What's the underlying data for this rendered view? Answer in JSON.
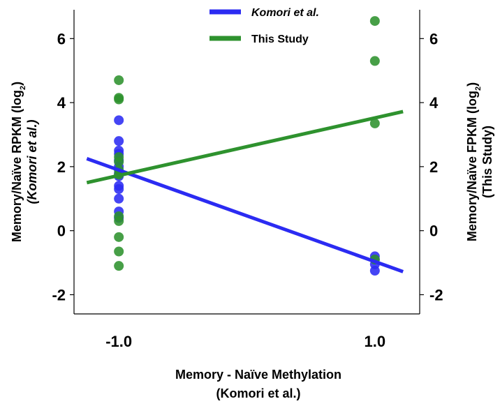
{
  "chart_data": {
    "type": "scatter",
    "x_ticks": [
      "-1.0",
      "1.0"
    ],
    "xlim": [
      -1.35,
      1.35
    ],
    "xlabel_line1": "Memory - Naïve Methylation",
    "xlabel_line2": "(Komori et  al.)",
    "y_left": {
      "label_main": "Memory/Naïve RPKM (log",
      "label_sub": "2",
      "label_close": ")",
      "label_line2": "(Komori et al.)",
      "ticks": [
        -2,
        0,
        2,
        4,
        6
      ],
      "ylim": [
        -2.6,
        6.9
      ]
    },
    "y_right": {
      "label_main": "Memory/Naïve FPKM (log",
      "label_sub": "2",
      "label_close": ")",
      "label_line2": "(This Study)",
      "ticks": [
        -2,
        0,
        2,
        4,
        6
      ],
      "ylim": [
        -2.6,
        6.9
      ]
    },
    "legend": {
      "position": "top-center",
      "entries": [
        "Komori et  al.",
        "This Study"
      ]
    },
    "series": [
      {
        "name": "Komori et  al.",
        "color": "#2b2bf2",
        "points": [
          [
            -1.0,
            3.45
          ],
          [
            -1.0,
            2.8
          ],
          [
            -1.0,
            2.5
          ],
          [
            -1.0,
            2.4
          ],
          [
            -1.0,
            2.2
          ],
          [
            -1.0,
            2.0
          ],
          [
            -1.0,
            1.8
          ],
          [
            -1.0,
            1.7
          ],
          [
            -1.0,
            1.4
          ],
          [
            -1.0,
            1.3
          ],
          [
            -1.0,
            1.0
          ],
          [
            -1.0,
            0.6
          ],
          [
            -1.0,
            0.4
          ],
          [
            1.0,
            -0.8
          ],
          [
            1.0,
            -0.9
          ],
          [
            1.0,
            -1.05
          ],
          [
            1.0,
            -1.25
          ]
        ],
        "fit_line": [
          [
            -1.25,
            2.25
          ],
          [
            1.22,
            -1.28
          ]
        ]
      },
      {
        "name": "This Study",
        "color": "#2e922e",
        "points": [
          [
            -1.0,
            4.7
          ],
          [
            -1.0,
            4.15
          ],
          [
            -1.0,
            4.1
          ],
          [
            -1.0,
            2.3
          ],
          [
            -1.0,
            2.15
          ],
          [
            -1.0,
            1.9
          ],
          [
            -1.0,
            1.75
          ],
          [
            -1.0,
            0.45
          ],
          [
            -1.0,
            0.3
          ],
          [
            -1.0,
            -0.2
          ],
          [
            -1.0,
            -0.65
          ],
          [
            -1.0,
            -1.1
          ],
          [
            1.0,
            6.55
          ],
          [
            1.0,
            5.3
          ],
          [
            1.0,
            3.35
          ],
          [
            1.0,
            -0.9
          ]
        ],
        "fit_line": [
          [
            -1.25,
            1.5
          ],
          [
            1.22,
            3.72
          ]
        ]
      }
    ]
  }
}
